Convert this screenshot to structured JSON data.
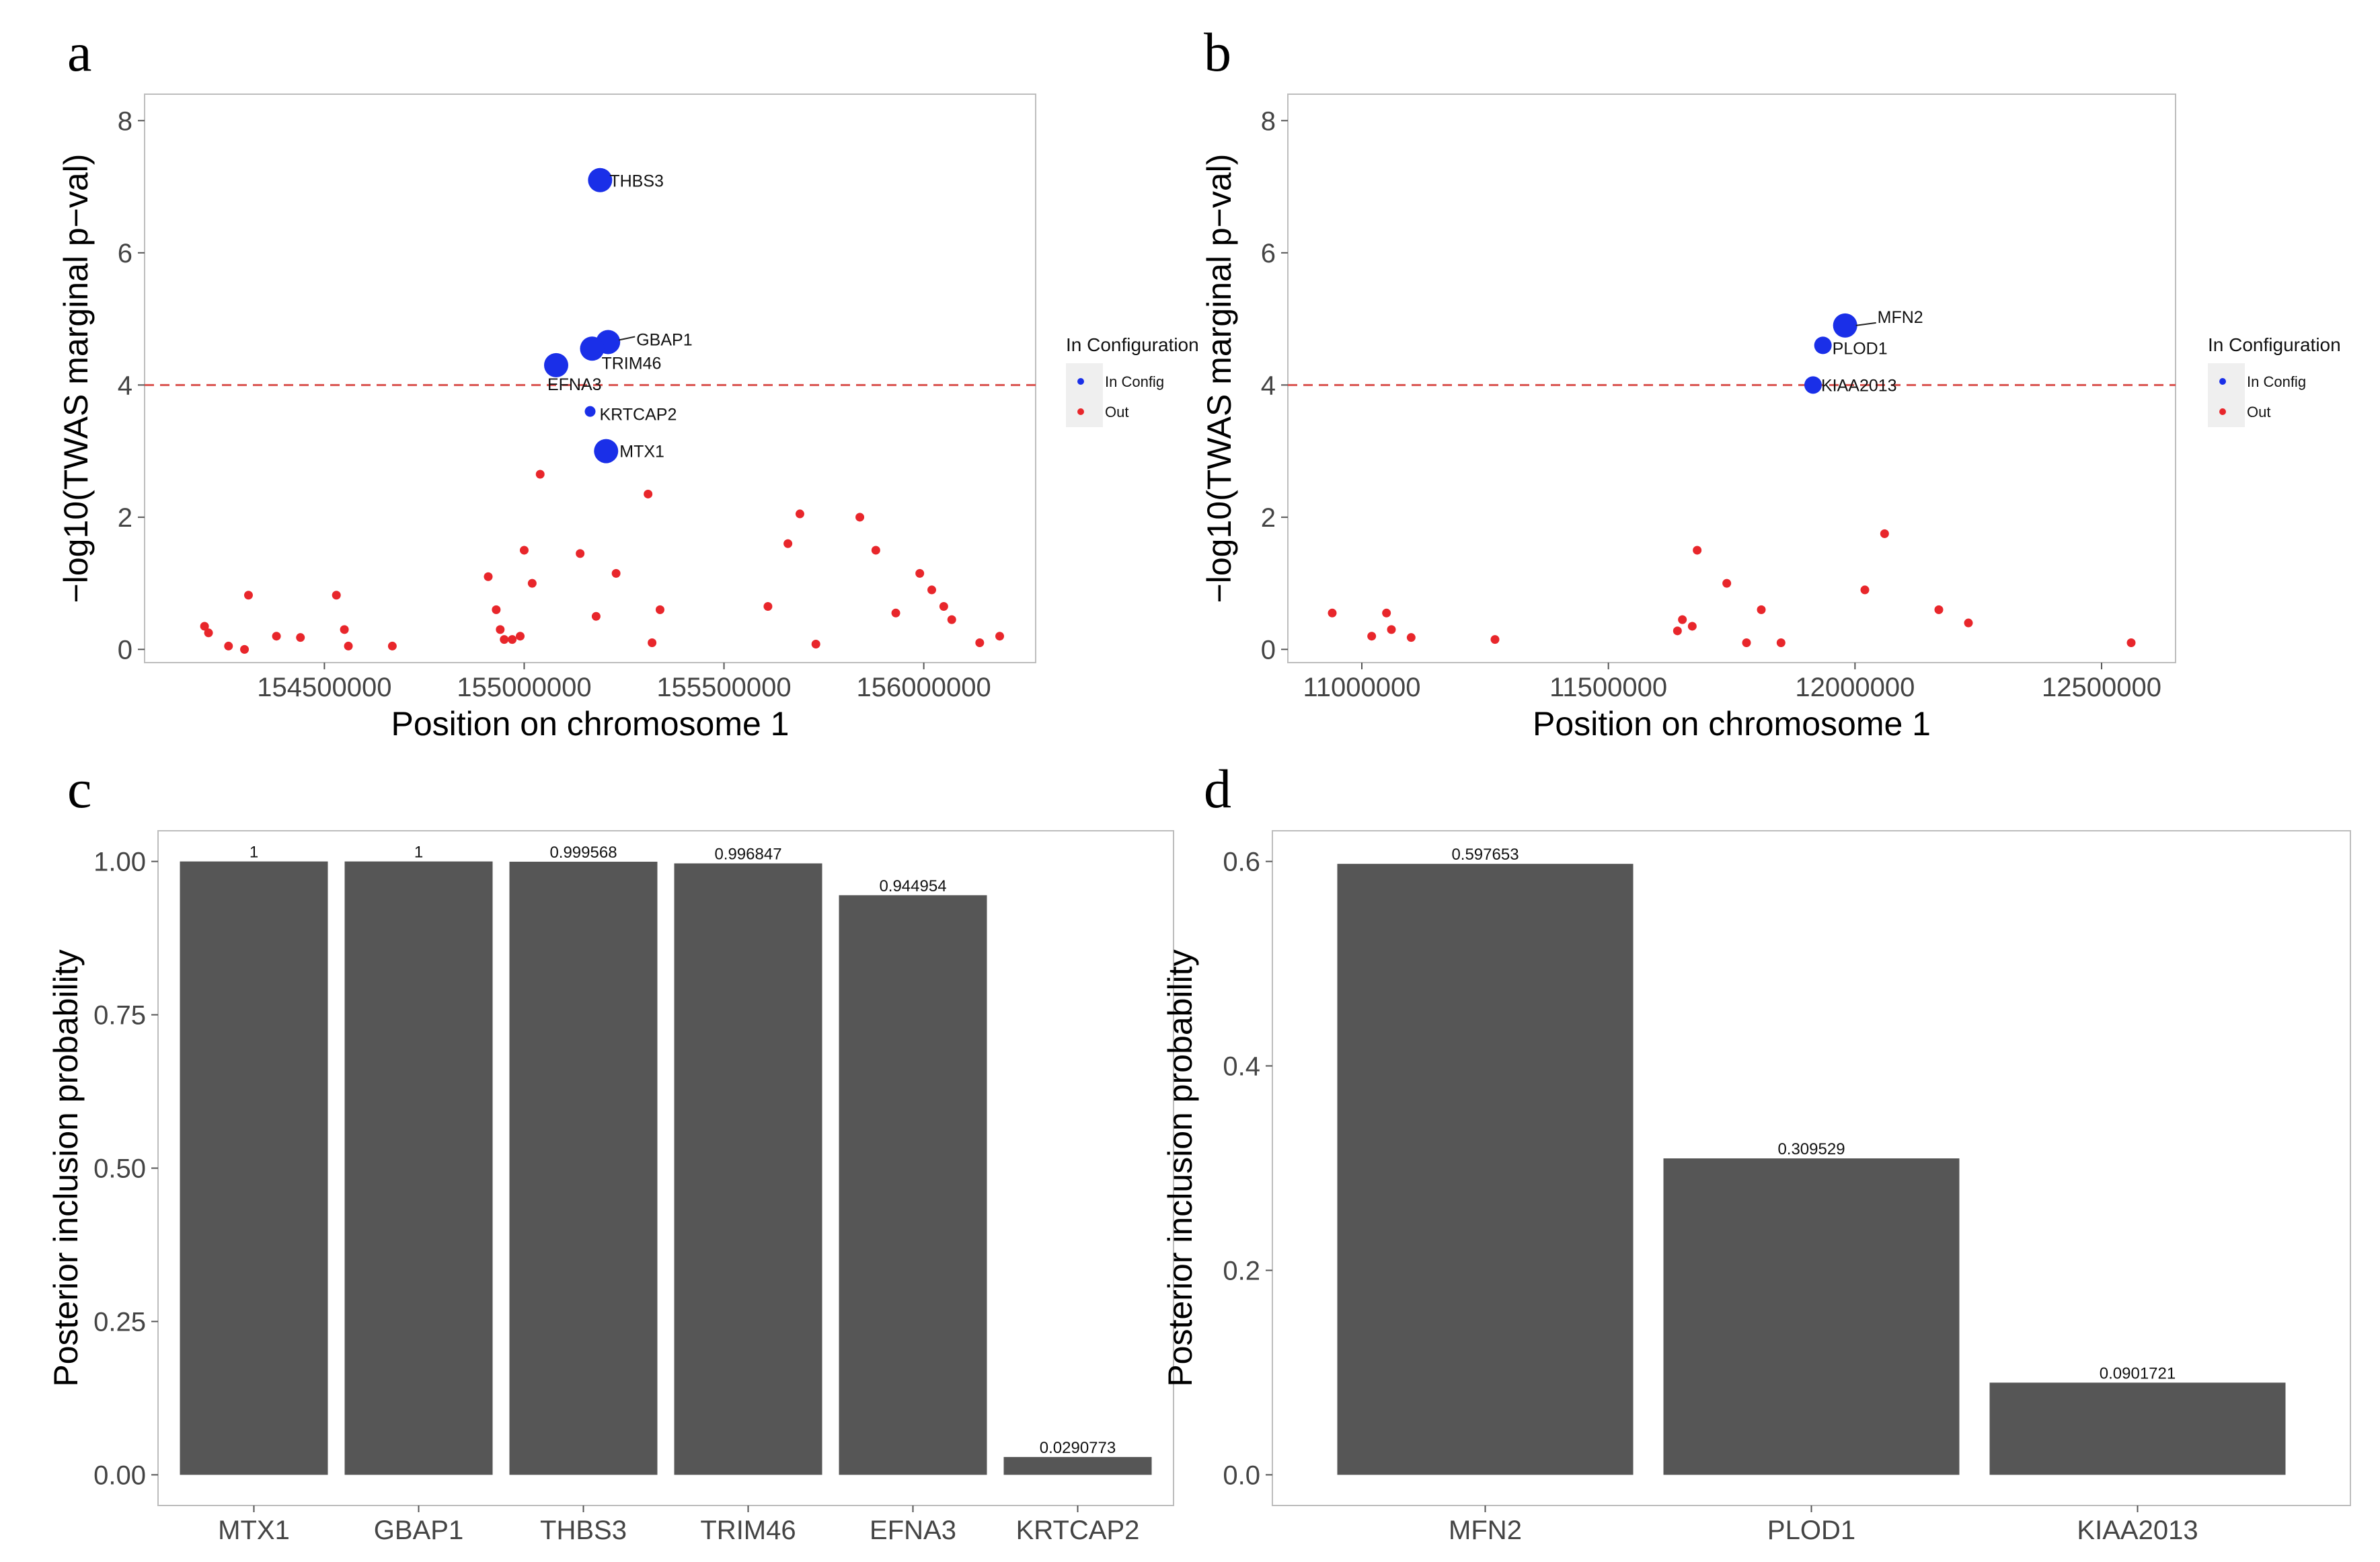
{
  "figure": {
    "panel_letters": [
      "a",
      "b",
      "c",
      "d"
    ]
  },
  "colors": {
    "in_config": "#1a2fe8",
    "out": "#e8262b",
    "threshold": "#d9534f",
    "bar": "#565656",
    "axis": "#555555",
    "frame": "#bdbdbd"
  },
  "chart_data": [
    {
      "panel": "a",
      "type": "scatter",
      "xlabel": "Position on chromosome 1",
      "ylabel": "−log10(TWAS marginal p−val)",
      "xlim": [
        154050000,
        156280000
      ],
      "ylim": [
        -0.2,
        8.4
      ],
      "xticks": [
        154500000,
        155000000,
        155500000,
        156000000
      ],
      "yticks": [
        0,
        2,
        4,
        6,
        8
      ],
      "threshold": 4,
      "legend": {
        "title": "In Configuration",
        "items": [
          "In Config",
          "Out"
        ]
      },
      "in_config": [
        {
          "gene": "THBS3",
          "x": 155190000,
          "y": 7.1,
          "size": "large"
        },
        {
          "gene": "GBAP1",
          "x": 155210000,
          "y": 4.65,
          "size": "large"
        },
        {
          "gene": "TRIM46",
          "x": 155170000,
          "y": 4.55,
          "size": "large"
        },
        {
          "gene": "EFNA3",
          "x": 155080000,
          "y": 4.3,
          "size": "large"
        },
        {
          "gene": "KRTCAP2",
          "x": 155165000,
          "y": 3.6,
          "size": "small"
        },
        {
          "gene": "MTX1",
          "x": 155205000,
          "y": 3.0,
          "size": "large"
        }
      ],
      "out": [
        [
          154200000,
          0.35
        ],
        [
          154210000,
          0.25
        ],
        [
          154260000,
          0.05
        ],
        [
          154310000,
          0.82
        ],
        [
          154300000,
          0.0
        ],
        [
          154380000,
          0.2
        ],
        [
          154440000,
          0.18
        ],
        [
          154530000,
          0.82
        ],
        [
          154550000,
          0.3
        ],
        [
          154560000,
          0.05
        ],
        [
          154670000,
          0.05
        ],
        [
          154910000,
          1.1
        ],
        [
          154930000,
          0.6
        ],
        [
          154940000,
          0.3
        ],
        [
          154950000,
          0.15
        ],
        [
          154970000,
          0.15
        ],
        [
          154990000,
          0.2
        ],
        [
          155000000,
          1.5
        ],
        [
          155020000,
          1.0
        ],
        [
          155040000,
          2.65
        ],
        [
          155140000,
          1.45
        ],
        [
          155180000,
          0.5
        ],
        [
          155230000,
          1.15
        ],
        [
          155310000,
          2.35
        ],
        [
          155320000,
          0.1
        ],
        [
          155340000,
          0.6
        ],
        [
          155610000,
          0.65
        ],
        [
          155660000,
          1.6
        ],
        [
          155690000,
          2.05
        ],
        [
          155730000,
          0.08
        ],
        [
          155840000,
          2.0
        ],
        [
          155880000,
          1.5
        ],
        [
          155930000,
          0.55
        ],
        [
          155990000,
          1.15
        ],
        [
          156020000,
          0.9
        ],
        [
          156050000,
          0.65
        ],
        [
          156070000,
          0.45
        ],
        [
          156140000,
          0.1
        ],
        [
          156190000,
          0.2
        ]
      ]
    },
    {
      "panel": "b",
      "type": "scatter",
      "xlabel": "Position on chromosome 1",
      "ylabel": "−log10(TWAS marginal p−val)",
      "xlim": [
        10850000,
        12650000
      ],
      "ylim": [
        -0.2,
        8.4
      ],
      "xticks": [
        11000000,
        11500000,
        12000000,
        12500000
      ],
      "yticks": [
        0,
        2,
        4,
        6,
        8
      ],
      "threshold": 4,
      "legend": {
        "title": "In Configuration",
        "items": [
          "In Config",
          "Out"
        ]
      },
      "in_config": [
        {
          "gene": "MFN2",
          "x": 11980000,
          "y": 4.9,
          "size": "large"
        },
        {
          "gene": "PLOD1",
          "x": 11935000,
          "y": 4.6,
          "size": "medium"
        },
        {
          "gene": "KIAA2013",
          "x": 11915000,
          "y": 4.0,
          "size": "medium"
        }
      ],
      "out": [
        [
          10940000,
          0.55
        ],
        [
          11020000,
          0.2
        ],
        [
          11050000,
          0.55
        ],
        [
          11060000,
          0.3
        ],
        [
          11100000,
          0.18
        ],
        [
          11270000,
          0.15
        ],
        [
          11640000,
          0.28
        ],
        [
          11650000,
          0.45
        ],
        [
          11670000,
          0.35
        ],
        [
          11680000,
          1.5
        ],
        [
          11740000,
          1.0
        ],
        [
          11780000,
          0.1
        ],
        [
          11810000,
          0.6
        ],
        [
          11850000,
          0.1
        ],
        [
          12020000,
          0.9
        ],
        [
          12060000,
          1.75
        ],
        [
          12170000,
          0.6
        ],
        [
          12230000,
          0.4
        ],
        [
          12560000,
          0.1
        ]
      ]
    },
    {
      "panel": "c",
      "type": "bar",
      "ylabel": "Posterior inclusion probability",
      "categories": [
        "MTX1",
        "GBAP1",
        "THBS3",
        "TRIM46",
        "EFNA3",
        "KRTCAP2"
      ],
      "values": [
        1,
        1,
        0.999568,
        0.996847,
        0.944954,
        0.0290773
      ],
      "value_labels": [
        "1",
        "1",
        "0.999568",
        "0.996847",
        "0.944954",
        "0.0290773"
      ],
      "ylim": [
        -0.05,
        1.05
      ],
      "yticks": [
        0,
        0.25,
        0.5,
        0.75,
        1.0
      ],
      "ytick_labels": [
        "0.00",
        "0.25",
        "0.50",
        "0.75",
        "1.00"
      ]
    },
    {
      "panel": "d",
      "type": "bar",
      "ylabel": "Posterior inclusion probability",
      "categories": [
        "MFN2",
        "PLOD1",
        "KIAA2013"
      ],
      "values": [
        0.597653,
        0.309529,
        0.0901721
      ],
      "value_labels": [
        "0.597653",
        "0.309529",
        "0.0901721"
      ],
      "ylim": [
        -0.03,
        0.63
      ],
      "yticks": [
        0,
        0.2,
        0.4,
        0.6
      ],
      "ytick_labels": [
        "0.0",
        "0.2",
        "0.4",
        "0.6"
      ]
    }
  ]
}
